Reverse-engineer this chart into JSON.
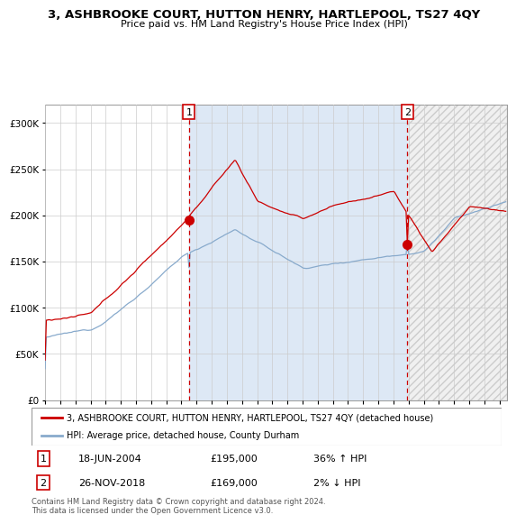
{
  "title": "3, ASHBROOKE COURT, HUTTON HENRY, HARTLEPOOL, TS27 4QY",
  "subtitle": "Price paid vs. HM Land Registry's House Price Index (HPI)",
  "ylim": [
    0,
    320000
  ],
  "yticks": [
    0,
    50000,
    100000,
    150000,
    200000,
    250000,
    300000
  ],
  "ytick_labels": [
    "£0",
    "£50K",
    "£100K",
    "£150K",
    "£200K",
    "£250K",
    "£300K"
  ],
  "red_color": "#cc0000",
  "blue_color": "#88aacc",
  "bg_color": "#dde8f5",
  "grid_color": "#cccccc",
  "marker1_year": 2004.46,
  "marker1_price": 195000,
  "marker1_date_str": "18-JUN-2004",
  "marker1_hpi_pct": "36% ↑ HPI",
  "marker2_year": 2018.9,
  "marker2_price": 169000,
  "marker2_date_str": "26-NOV-2018",
  "marker2_hpi_pct": "2% ↓ HPI",
  "legend_red": "3, ASHBROOKE COURT, HUTTON HENRY, HARTLEPOOL, TS27 4QY (detached house)",
  "legend_blue": "HPI: Average price, detached house, County Durham",
  "footer": "Contains HM Land Registry data © Crown copyright and database right 2024.\nThis data is licensed under the Open Government Licence v3.0.",
  "xmin": 1995.0,
  "xmax": 2025.5
}
